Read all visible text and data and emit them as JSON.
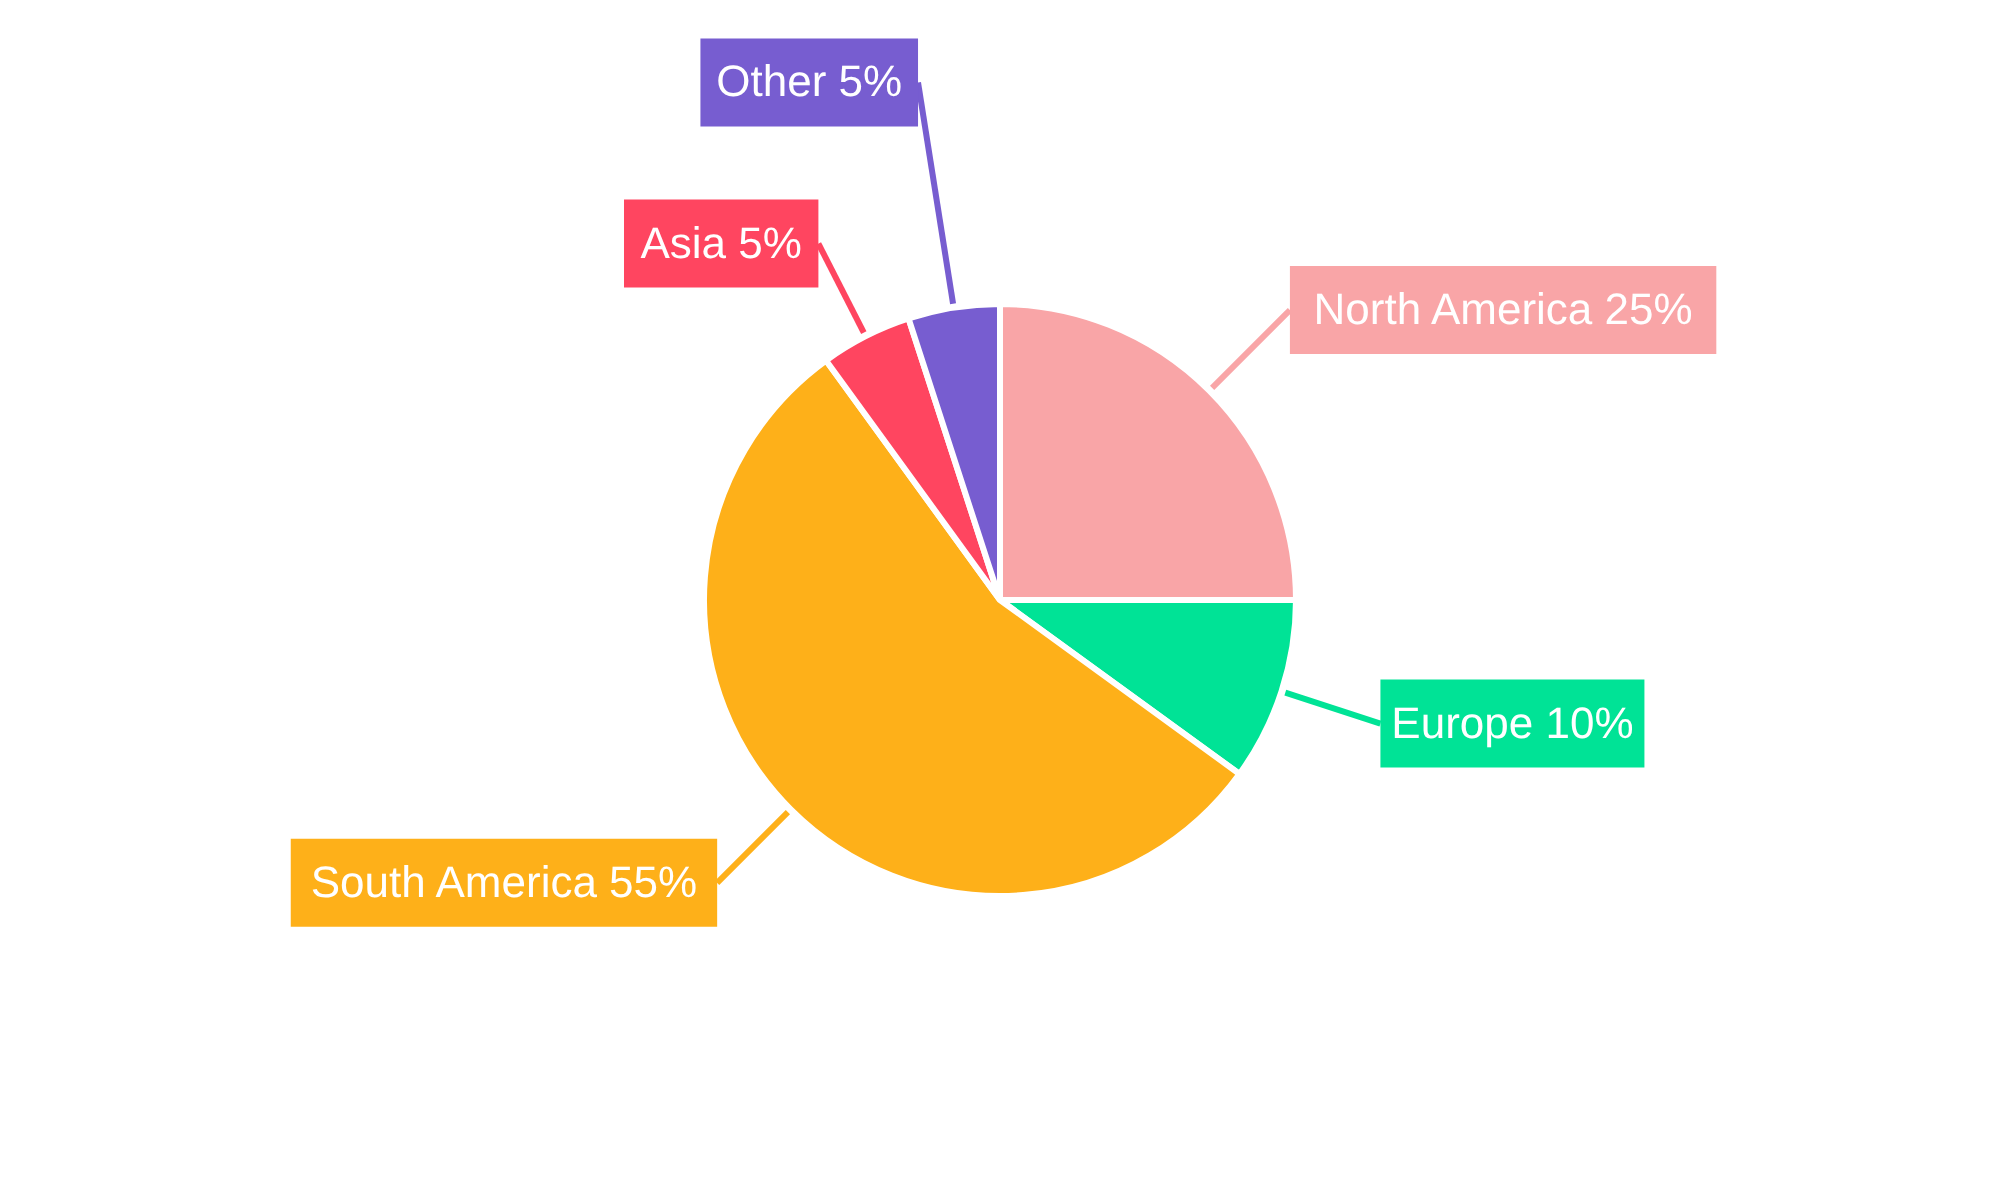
{
  "chart_data": {
    "type": "pie",
    "categories": [
      "North America",
      "Europe",
      "South America",
      "Asia",
      "Other"
    ],
    "values": [
      25,
      10,
      55,
      5,
      5
    ],
    "value_labels": [
      "25%",
      "10%",
      "55%",
      "5%",
      "5%"
    ],
    "colors": [
      "#f9a5a7",
      "#00e396",
      "#feb019",
      "#ff4560",
      "#775dd0"
    ]
  }
}
